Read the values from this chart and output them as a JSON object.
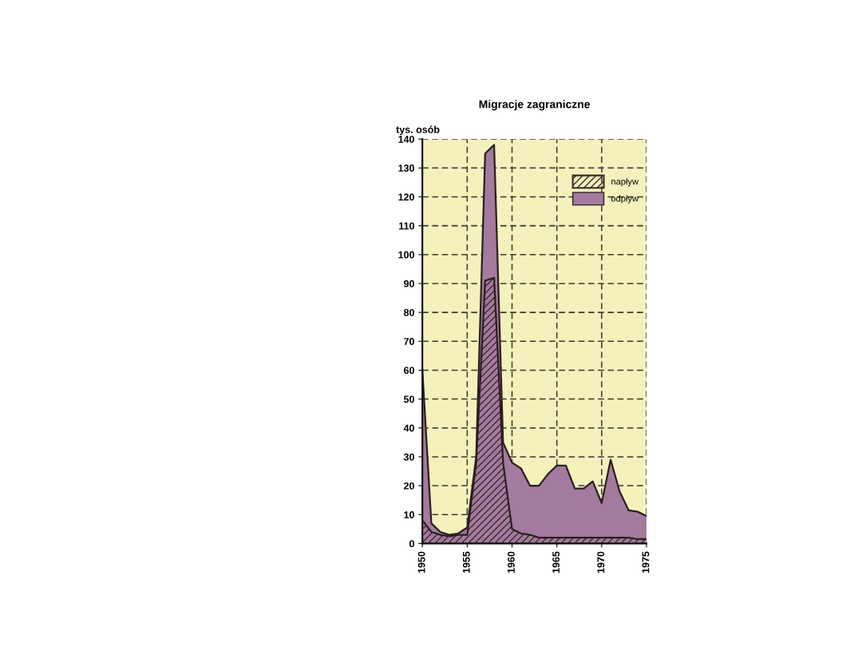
{
  "chart_data": {
    "type": "area",
    "title": "Migracje zagraniczne",
    "ylabel": "tys. osób",
    "x": [
      1950,
      1951,
      1952,
      1953,
      1954,
      1955,
      1956,
      1957,
      1958,
      1959,
      1960,
      1961,
      1962,
      1963,
      1964,
      1965,
      1966,
      1967,
      1968,
      1969,
      1970,
      1971,
      1972,
      1973,
      1974,
      1975
    ],
    "series": [
      {
        "name": "odpływ",
        "color": "#a47a9e",
        "values": [
          60,
          7,
          4,
          3,
          3.5,
          5.5,
          30,
          135,
          138,
          35,
          28,
          26,
          20,
          20,
          24,
          27,
          27,
          19,
          19,
          21.5,
          14,
          29,
          18,
          11.5,
          11,
          9.5
        ]
      },
      {
        "name": "napływ",
        "color": "#3a2a2a",
        "values": [
          8,
          4,
          3,
          2.5,
          3,
          3,
          28,
          91,
          92,
          28,
          5,
          3.5,
          3,
          2,
          2,
          2,
          2,
          2,
          2,
          2,
          2,
          2,
          2,
          2,
          1.5,
          1.5
        ]
      }
    ],
    "xlim": [
      1950,
      1975
    ],
    "xticks": [
      1950,
      1955,
      1960,
      1965,
      1970,
      1975
    ],
    "ylim": [
      0,
      140
    ],
    "yticks": [
      0,
      10,
      20,
      30,
      40,
      50,
      60,
      70,
      80,
      90,
      100,
      110,
      120,
      130,
      140
    ],
    "grid": true,
    "legend": "top right"
  }
}
